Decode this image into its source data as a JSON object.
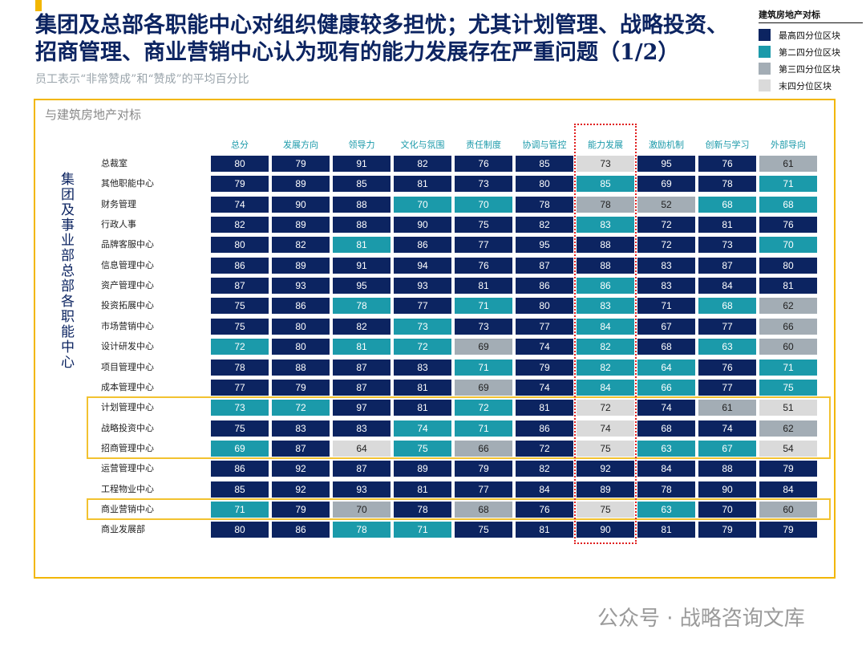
{
  "header": {
    "title_lines": [
      "集团及总部各职能中心对组织健康较多担忧；尤其计划管理、战略投资、",
      "招商管理、商业营销中心认为现有的能力发展存在严重问题（1/2）"
    ],
    "subtitle": "员工表示“非常赞成”和“赞成”的平均百分比"
  },
  "legend": {
    "title": "建筑房地产对标",
    "items": [
      {
        "label": "最高四分位区块",
        "color": "#0c2461"
      },
      {
        "label": "第二四分位区块",
        "color": "#1b9aaa"
      },
      {
        "label": "第三四分位区块",
        "color": "#a3adb5"
      },
      {
        "label": "末四分位区块",
        "color": "#dadada"
      }
    ]
  },
  "panel": {
    "title": "与建筑房地产对标",
    "row_group_label": "集团及事业部总部各职能中心"
  },
  "table": {
    "columns": [
      "总分",
      "发展方向",
      "领导力",
      "文化与氛围",
      "责任制度",
      "协调与管控",
      "能力发展",
      "激励机制",
      "创新与学习",
      "外部导向"
    ],
    "rows": [
      {
        "name": "总裁室",
        "values": [
          80,
          79,
          91,
          82,
          76,
          85,
          73,
          95,
          76,
          61
        ],
        "levels": [
          0,
          0,
          0,
          0,
          0,
          0,
          3,
          0,
          0,
          2
        ]
      },
      {
        "name": "其他职能中心",
        "values": [
          79,
          89,
          85,
          81,
          73,
          80,
          85,
          69,
          78,
          71
        ],
        "levels": [
          0,
          0,
          0,
          0,
          0,
          0,
          1,
          0,
          0,
          1
        ]
      },
      {
        "name": "财务管理",
        "values": [
          74,
          90,
          88,
          70,
          70,
          78,
          78,
          52,
          68,
          68
        ],
        "levels": [
          0,
          0,
          0,
          1,
          1,
          0,
          2,
          2,
          1,
          1
        ]
      },
      {
        "name": "行政人事",
        "values": [
          82,
          89,
          88,
          90,
          75,
          82,
          83,
          72,
          81,
          76
        ],
        "levels": [
          0,
          0,
          0,
          0,
          0,
          0,
          1,
          0,
          0,
          0
        ]
      },
      {
        "name": "品牌客服中心",
        "values": [
          80,
          82,
          81,
          86,
          77,
          95,
          88,
          72,
          73,
          70
        ],
        "levels": [
          0,
          0,
          1,
          0,
          0,
          0,
          0,
          0,
          0,
          1
        ]
      },
      {
        "name": "信息管理中心",
        "values": [
          86,
          89,
          91,
          94,
          76,
          87,
          88,
          83,
          87,
          80
        ],
        "levels": [
          0,
          0,
          0,
          0,
          0,
          0,
          0,
          0,
          0,
          0
        ]
      },
      {
        "name": "资产管理中心",
        "values": [
          87,
          93,
          95,
          93,
          81,
          86,
          86,
          83,
          84,
          81
        ],
        "levels": [
          0,
          0,
          0,
          0,
          0,
          0,
          1,
          0,
          0,
          0
        ]
      },
      {
        "name": "投资拓展中心",
        "values": [
          75,
          86,
          78,
          77,
          71,
          80,
          83,
          71,
          68,
          62
        ],
        "levels": [
          0,
          0,
          1,
          0,
          1,
          0,
          1,
          0,
          1,
          2
        ]
      },
      {
        "name": "市场营销中心",
        "values": [
          75,
          80,
          82,
          73,
          73,
          77,
          84,
          67,
          77,
          66
        ],
        "levels": [
          0,
          0,
          0,
          1,
          0,
          0,
          1,
          0,
          0,
          2
        ]
      },
      {
        "name": "设计研发中心",
        "values": [
          72,
          80,
          81,
          72,
          69,
          74,
          82,
          68,
          63,
          60
        ],
        "levels": [
          1,
          0,
          1,
          1,
          2,
          0,
          1,
          0,
          1,
          2
        ]
      },
      {
        "name": "项目管理中心",
        "values": [
          78,
          88,
          87,
          83,
          71,
          79,
          82,
          64,
          76,
          71
        ],
        "levels": [
          0,
          0,
          0,
          0,
          1,
          0,
          1,
          1,
          0,
          1
        ]
      },
      {
        "name": "成本管理中心",
        "values": [
          77,
          79,
          87,
          81,
          69,
          74,
          84,
          66,
          77,
          75
        ],
        "levels": [
          0,
          0,
          0,
          0,
          2,
          0,
          1,
          1,
          0,
          1
        ]
      },
      {
        "name": "计划管理中心",
        "values": [
          73,
          72,
          97,
          81,
          72,
          81,
          72,
          74,
          61,
          51
        ],
        "levels": [
          1,
          1,
          0,
          0,
          1,
          0,
          3,
          0,
          2,
          3
        ]
      },
      {
        "name": "战略投资中心",
        "values": [
          75,
          83,
          83,
          74,
          71,
          86,
          74,
          68,
          74,
          62
        ],
        "levels": [
          0,
          0,
          0,
          1,
          1,
          0,
          3,
          0,
          0,
          2
        ]
      },
      {
        "name": "招商管理中心",
        "values": [
          69,
          87,
          64,
          75,
          66,
          72,
          75,
          63,
          67,
          54
        ],
        "levels": [
          1,
          0,
          3,
          1,
          2,
          0,
          3,
          1,
          1,
          3
        ]
      },
      {
        "name": "运营管理中心",
        "values": [
          86,
          92,
          87,
          89,
          79,
          82,
          92,
          84,
          88,
          79
        ],
        "levels": [
          0,
          0,
          0,
          0,
          0,
          0,
          0,
          0,
          0,
          0
        ]
      },
      {
        "name": "工程物业中心",
        "values": [
          85,
          92,
          93,
          81,
          77,
          84,
          89,
          78,
          90,
          84
        ],
        "levels": [
          0,
          0,
          0,
          0,
          0,
          0,
          0,
          0,
          0,
          0
        ]
      },
      {
        "name": "商业营销中心",
        "values": [
          71,
          79,
          70,
          78,
          68,
          76,
          75,
          63,
          70,
          60
        ],
        "levels": [
          1,
          0,
          2,
          0,
          2,
          0,
          3,
          1,
          0,
          2
        ]
      },
      {
        "name": "商业发展部",
        "values": [
          80,
          86,
          78,
          71,
          75,
          81,
          90,
          81,
          79,
          79
        ],
        "levels": [
          0,
          0,
          1,
          1,
          0,
          0,
          0,
          0,
          0,
          0
        ]
      }
    ],
    "highlight_rows": [
      [
        12,
        14
      ],
      [
        17,
        17
      ]
    ],
    "highlight_column": 6
  },
  "watermark": "公众号 · 战略咨询文库"
}
